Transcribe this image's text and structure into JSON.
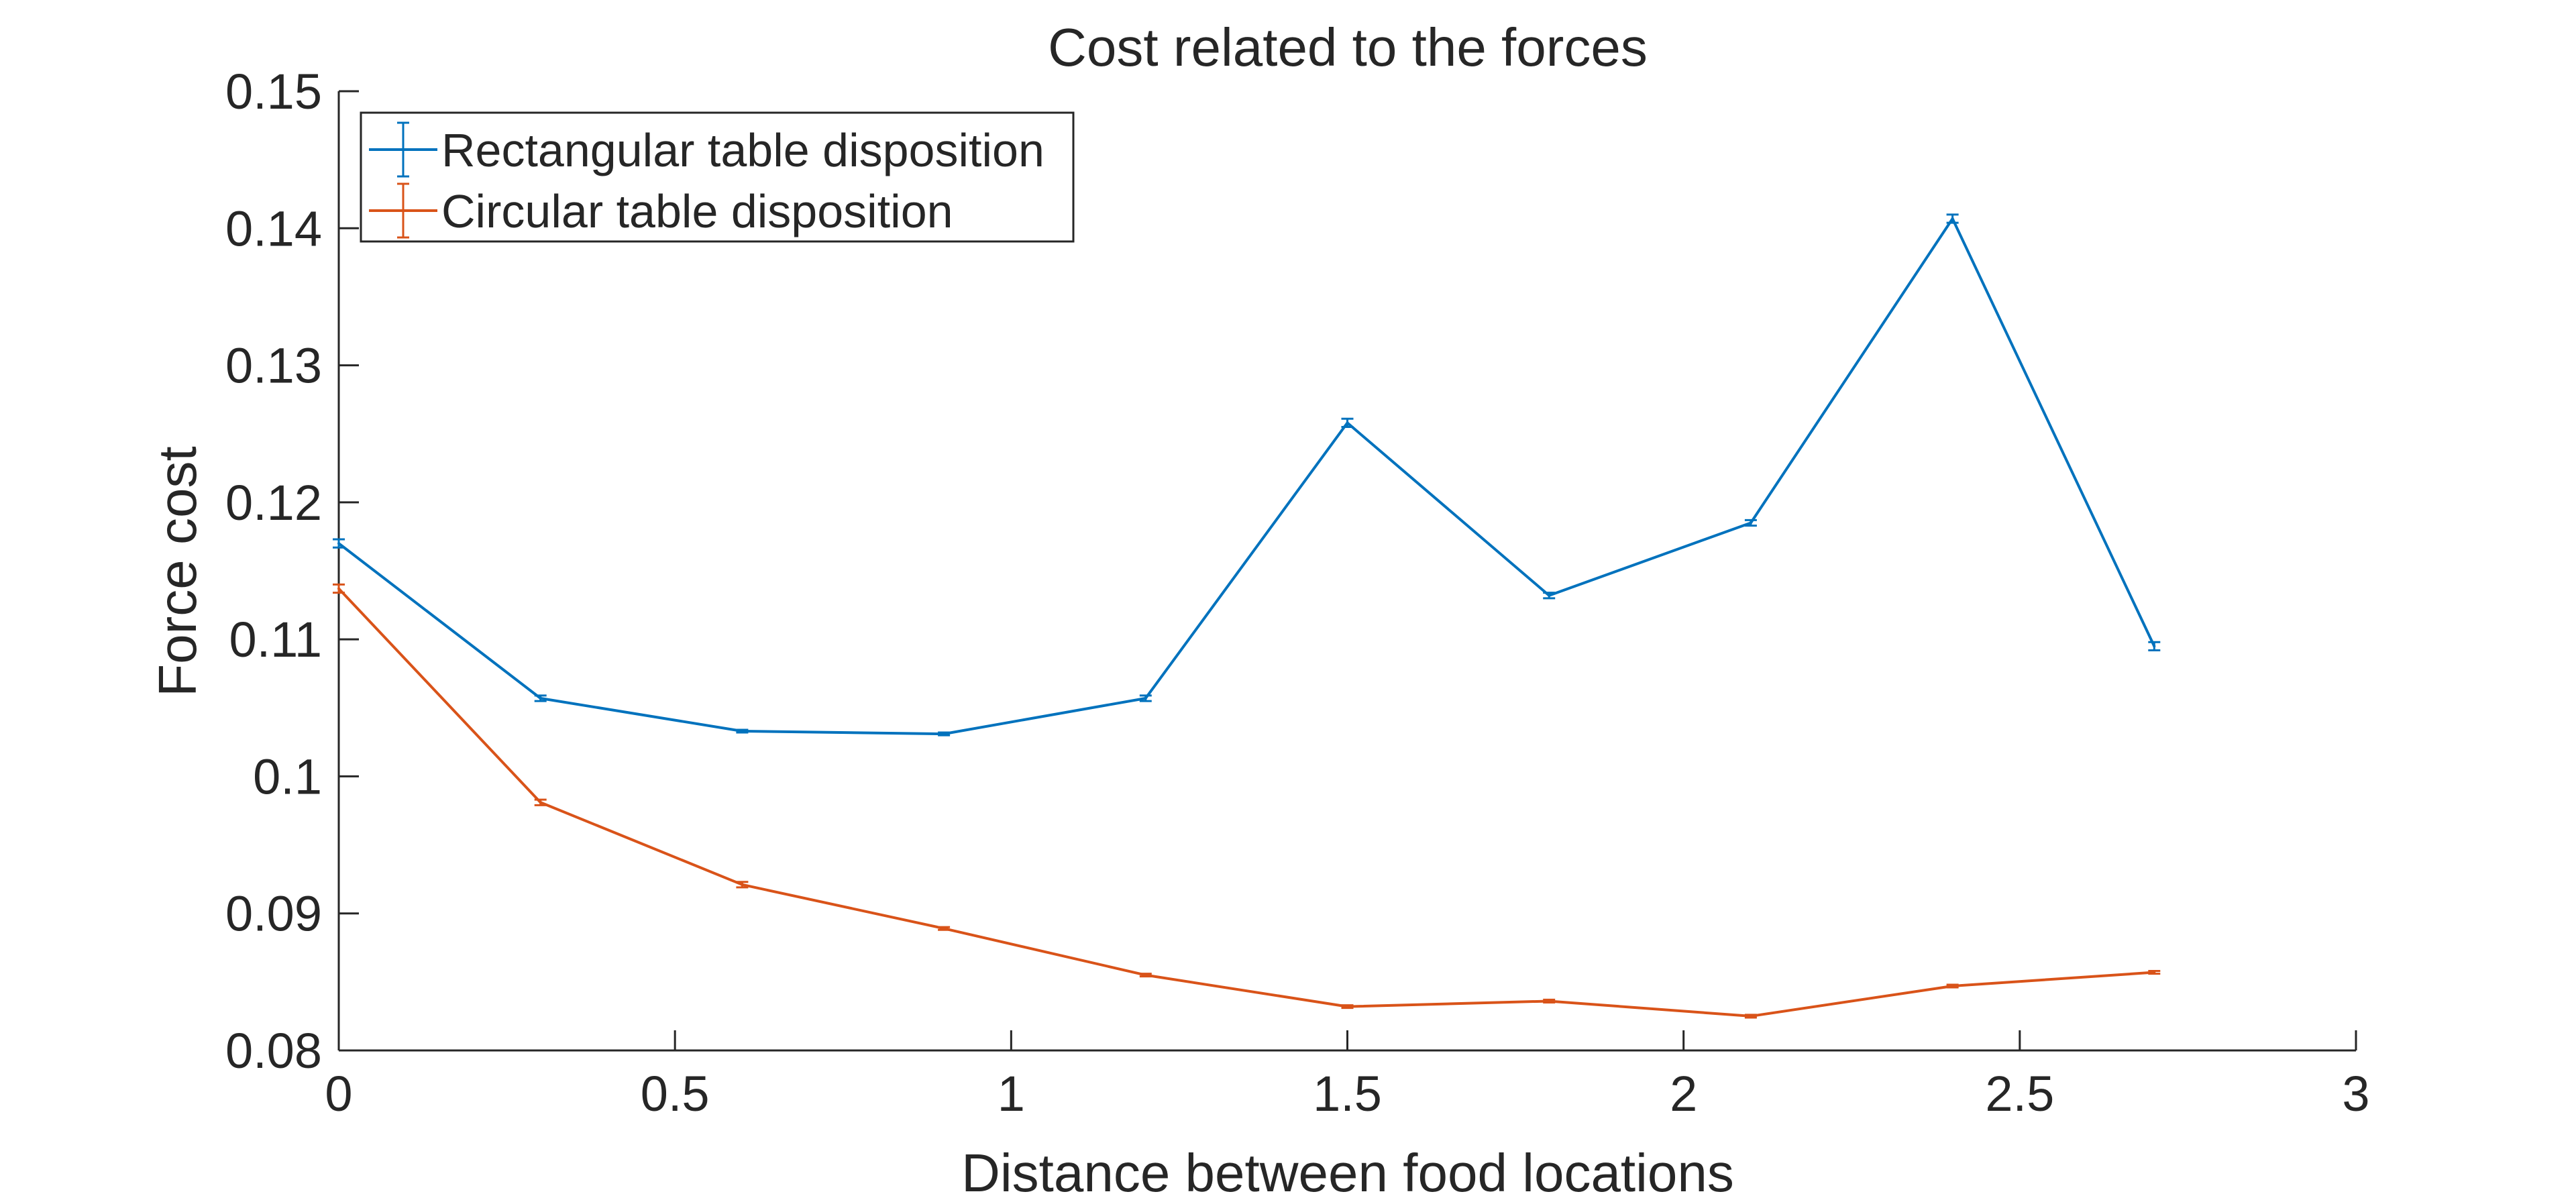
{
  "chart_data": {
    "type": "line",
    "title": "Cost related to the forces",
    "xlabel": "Distance between food locations",
    "ylabel": "Force cost",
    "xlim": [
      0,
      3
    ],
    "ylim": [
      0.08,
      0.15
    ],
    "x_ticks": [
      0,
      0.5,
      1,
      1.5,
      2,
      2.5,
      3
    ],
    "x_tick_labels": [
      "0",
      "0.5",
      "1",
      "1.5",
      "2",
      "2.5",
      "3"
    ],
    "y_ticks": [
      0.08,
      0.09,
      0.1,
      0.11,
      0.12,
      0.13,
      0.14,
      0.15
    ],
    "y_tick_labels": [
      "0.08",
      "0.09",
      "0.1",
      "0.11",
      "0.12",
      "0.13",
      "0.14",
      "0.15"
    ],
    "grid": false,
    "legend_position": "top-left",
    "error_bars": true,
    "x": [
      0,
      0.3,
      0.6,
      0.9,
      1.2,
      1.5,
      1.8,
      2.1,
      2.4,
      2.7
    ],
    "series": [
      {
        "name": "Rectangular table disposition",
        "color": "#0072BD",
        "values": [
          0.117,
          0.1057,
          0.1033,
          0.1031,
          0.1057,
          0.1258,
          0.1132,
          0.1185,
          0.1407,
          0.1095
        ],
        "errors": [
          0.0003,
          0.0002,
          0.0001,
          0.0001,
          0.0002,
          0.0003,
          0.0002,
          0.0002,
          0.0003,
          0.0003
        ]
      },
      {
        "name": "Circular table disposition",
        "color": "#D95319",
        "values": [
          0.1137,
          0.0981,
          0.0921,
          0.0889,
          0.0855,
          0.0832,
          0.0836,
          0.0825,
          0.0847,
          0.0857
        ],
        "errors": [
          0.0003,
          0.0002,
          0.0002,
          0.0001,
          0.0001,
          0.0001,
          0.0001,
          0.0001,
          0.0001,
          0.0001
        ]
      }
    ]
  }
}
